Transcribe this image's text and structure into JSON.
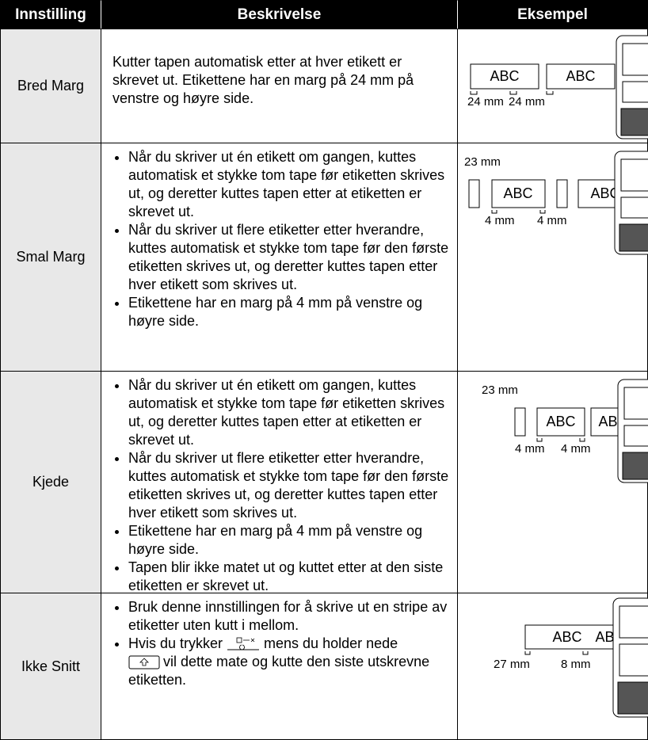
{
  "header": {
    "columns": [
      "Innstilling",
      "Beskrivelse",
      "Eksempel"
    ]
  },
  "rows": [
    {
      "setting": "Bred Marg",
      "description": "Kutter tapen automatisk etter at hver etikett er skrevet ut. Etikettene har en marg på 24 mm på venstre og høyre side.",
      "example": {
        "labels": [
          "ABC",
          "ABC"
        ],
        "dimensions": [
          "24 mm",
          "24 mm"
        ]
      }
    },
    {
      "setting": "Smal Marg",
      "bullets": [
        "Når du skriver ut én etikett om gangen, kuttes automatisk et stykke tom tape før etiketten skrives ut, og deretter kuttes tapen etter at etiketten er skrevet ut.",
        "Når du skriver ut flere etiketter etter hverandre, kuttes automatisk et stykke tom tape før den første etiketten skrives ut, og deretter kuttes tapen etter hver etikett som skrives ut.",
        "Etikettene har en marg på 4 mm på venstre og høyre side."
      ],
      "example": {
        "tape_length": "23 mm",
        "labels": [
          "ABC",
          "ABC"
        ],
        "dimensions": [
          "4 mm",
          "4 mm"
        ]
      }
    },
    {
      "setting": "Kjede",
      "bullets": [
        "Når du skriver ut én etikett om gangen, kuttes automatisk et stykke tom tape før etiketten skrives ut, og deretter kuttes tapen etter at etiketten er skrevet ut.",
        "Når du skriver ut flere etiketter etter hverandre, kuttes automatisk et stykke tom tape før den første etiketten skrives ut, og deretter kuttes tapen etter hver etikett som skrives ut.",
        "Etikettene har en marg på 4 mm på venstre og høyre side.",
        "Tapen blir ikke matet ut og kuttet etter at den siste etiketten er skrevet ut."
      ],
      "example": {
        "tape_length": "23 mm",
        "labels": [
          "ABC",
          "ABC"
        ],
        "dimensions": [
          "4 mm",
          "4 mm"
        ]
      }
    },
    {
      "setting": "Ikke Snitt",
      "bullets": [
        "Bruk denne innstillingen for å skrive ut en stripe av etiketter uten kutt i mellom.",
        {
          "parts": [
            "Hvis du trykker",
            "mens du holder nede",
            "vil dette mate og kutte den siste utskrevne etiketten."
          ]
        }
      ],
      "example": {
        "labels": [
          "ABC",
          "ABC"
        ],
        "dimensions": [
          "27 mm",
          "8 mm"
        ]
      }
    }
  ]
}
